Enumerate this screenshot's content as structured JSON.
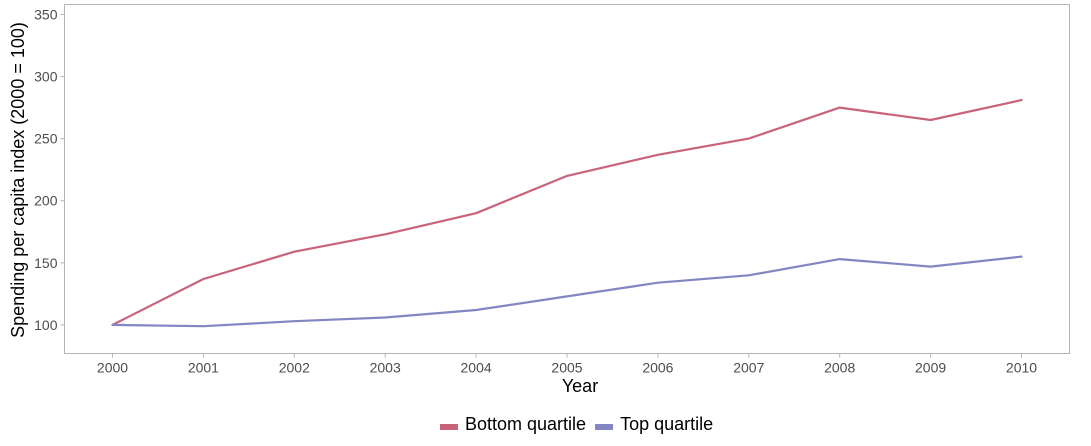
{
  "chart_data": {
    "type": "line",
    "title": "",
    "xlabel": "Year",
    "ylabel": "Spending per capita index (2000 = 100)",
    "x": [
      2000,
      2001,
      2002,
      2003,
      2004,
      2005,
      2006,
      2007,
      2008,
      2009,
      2010
    ],
    "x_tick_labels": [
      "2000",
      "2001",
      "2002",
      "2003",
      "2004",
      "2005",
      "2006",
      "2007",
      "2008",
      "2009",
      "2010"
    ],
    "y_ticks": [
      100,
      150,
      200,
      250,
      300,
      350
    ],
    "y_tick_labels": [
      "100",
      "150",
      "200",
      "250",
      "300",
      "350"
    ],
    "ylim": [
      77,
      358
    ],
    "grid": false,
    "legend_position": "bottom",
    "series": [
      {
        "name": "Bottom quartile",
        "color": "#c8637a",
        "values": [
          100,
          137,
          159,
          173,
          190,
          220,
          237,
          250,
          275,
          265,
          281
        ]
      },
      {
        "name": "Top quartile",
        "color": "#8286c2",
        "values": [
          100,
          99,
          103,
          106,
          112,
          123,
          134,
          140,
          153,
          147,
          155
        ]
      }
    ]
  }
}
